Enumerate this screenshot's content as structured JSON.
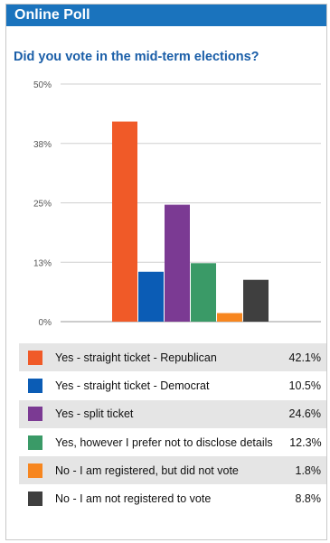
{
  "header": {
    "title": "Online Poll"
  },
  "poll": {
    "question": "Did you vote in the mid-term elections?"
  },
  "colors": {
    "header_bg": "#1a73bd",
    "question_text": "#1a5ea8",
    "grid": "#cfcfcf"
  },
  "chart_data": {
    "type": "bar",
    "title": "",
    "xlabel": "",
    "ylabel": "",
    "ylim": [
      0,
      50
    ],
    "yticks": [
      {
        "value": 0,
        "label": "0%"
      },
      {
        "value": 12.5,
        "label": "13%"
      },
      {
        "value": 25,
        "label": "25%"
      },
      {
        "value": 37.5,
        "label": "38%"
      },
      {
        "value": 50,
        "label": "50%"
      }
    ],
    "grid": true,
    "categories": [
      "Yes - straight ticket - Republican",
      "Yes - straight ticket - Democrat",
      "Yes - split ticket",
      "Yes, however I prefer not to disclose details",
      "No - I am registered, but did not vote",
      "No - I am not registered to vote"
    ],
    "values": [
      42.1,
      10.5,
      24.6,
      12.3,
      1.8,
      8.8
    ],
    "value_labels": [
      "42.1%",
      "10.5%",
      "24.6%",
      "12.3%",
      "1.8%",
      "8.8%"
    ],
    "colors": [
      "#f05a28",
      "#0b5cb5",
      "#7b3a93",
      "#3a9a67",
      "#f7861f",
      "#3f3f3f"
    ]
  }
}
